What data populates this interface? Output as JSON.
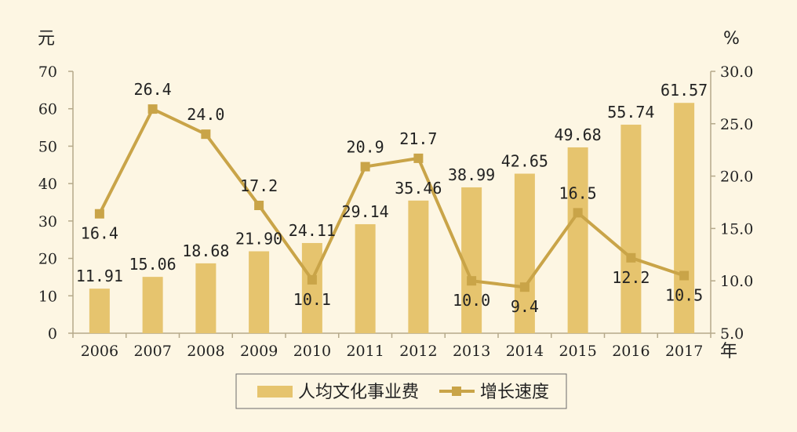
{
  "chart_data": {
    "type": "bar+line",
    "categories": [
      "2006",
      "2007",
      "2008",
      "2009",
      "2010",
      "2011",
      "2012",
      "2013",
      "2014",
      "2015",
      "2016",
      "2017"
    ],
    "series": [
      {
        "name": "人均文化事业费",
        "type": "bar",
        "axis": "left",
        "values": [
          11.91,
          15.06,
          18.68,
          21.9,
          24.11,
          29.14,
          35.46,
          38.99,
          42.65,
          49.68,
          55.74,
          61.57
        ],
        "labels": [
          "11.91",
          "15.06",
          "18.68",
          "21.90",
          "24.11",
          "29.14",
          "35.46",
          "38.99",
          "42.65",
          "49.68",
          "55.74",
          "61.57"
        ]
      },
      {
        "name": "增长速度",
        "type": "line",
        "axis": "right",
        "values": [
          16.4,
          26.4,
          24.0,
          17.2,
          10.1,
          20.9,
          21.7,
          10.0,
          9.4,
          16.5,
          12.2,
          10.5
        ],
        "labels": [
          "16.4",
          "26.4",
          "24.0",
          "17.2",
          "10.1",
          "20.9",
          "21.7",
          "10.0",
          "9.4",
          "16.5",
          "12.2",
          "10.5"
        ]
      }
    ],
    "y_left": {
      "unit": "元",
      "ylim": [
        0,
        70
      ],
      "ticks": [
        "0",
        "10",
        "20",
        "30",
        "40",
        "50",
        "60",
        "70"
      ]
    },
    "y_right": {
      "unit": "%",
      "ylim": [
        5.0,
        30.0
      ],
      "ticks": [
        "5.0",
        "10.0",
        "15.0",
        "20.0",
        "25.0",
        "30.0"
      ]
    },
    "x_unit": "年",
    "grid": false,
    "legend": "bottom-center",
    "colors": {
      "bar": "#e6c46e",
      "line": "#c9a448",
      "background": "#fdf6e3",
      "axis": "#b5a98a"
    }
  }
}
